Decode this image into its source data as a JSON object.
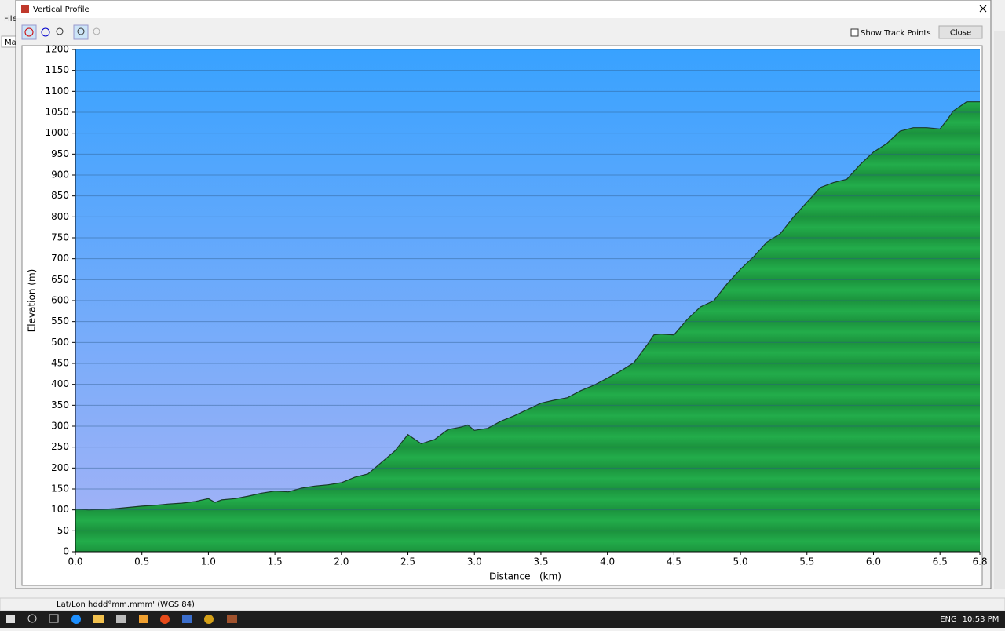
{
  "app": {
    "menu": "File",
    "tab": "Map"
  },
  "window": {
    "title": "Vertical Profile",
    "checkbox": "Show Track Points",
    "close_button": "Close"
  },
  "status_bar": {
    "coords": "Lat/Lon hddd°mm.mmm' (WGS 84)"
  },
  "taskbar": {
    "language": "ENG",
    "clock": "10:53 PM"
  },
  "chart_data": {
    "type": "area",
    "x_label": "Distance   (km)",
    "y_label": "Elevation (m)",
    "x": [
      0.0,
      0.1,
      0.2,
      0.3,
      0.4,
      0.5,
      0.6,
      0.7,
      0.8,
      0.9,
      1.0,
      1.05,
      1.1,
      1.2,
      1.3,
      1.4,
      1.5,
      1.6,
      1.7,
      1.8,
      1.9,
      2.0,
      2.1,
      2.2,
      2.3,
      2.4,
      2.5,
      2.6,
      2.7,
      2.8,
      2.9,
      2.95,
      3.0,
      3.1,
      3.2,
      3.3,
      3.4,
      3.5,
      3.6,
      3.7,
      3.8,
      3.9,
      4.0,
      4.1,
      4.2,
      4.3,
      4.35,
      4.4,
      4.5,
      4.6,
      4.7,
      4.8,
      4.9,
      5.0,
      5.1,
      5.2,
      5.3,
      5.4,
      5.5,
      5.6,
      5.7,
      5.8,
      5.9,
      6.0,
      6.1,
      6.2,
      6.3,
      6.4,
      6.5,
      6.55,
      6.6,
      6.7,
      6.8
    ],
    "values": [
      102,
      100,
      101,
      103,
      106,
      109,
      111,
      114,
      116,
      120,
      127,
      118,
      124,
      127,
      133,
      140,
      145,
      143,
      152,
      157,
      160,
      165,
      178,
      186,
      213,
      240,
      280,
      258,
      268,
      292,
      298,
      303,
      290,
      295,
      312,
      325,
      340,
      355,
      362,
      368,
      385,
      398,
      415,
      432,
      452,
      495,
      518,
      520,
      518,
      555,
      585,
      600,
      640,
      675,
      705,
      740,
      760,
      800,
      835,
      870,
      882,
      890,
      925,
      955,
      975,
      1005,
      1013,
      1013,
      1010,
      1030,
      1053,
      1075,
      1075
    ],
    "color": "#1fa346",
    "line_color": "#1a3a2a",
    "xlim": [
      0,
      6.8
    ],
    "xticks": [
      {
        "value": 0,
        "label": "0.0"
      },
      0.5,
      {
        "value": 1,
        "label": "1.0"
      },
      1.5,
      {
        "value": 2,
        "label": "2.0"
      },
      2.5,
      {
        "value": 3,
        "label": "3.0"
      },
      3.5,
      {
        "value": 4,
        "label": "4.0"
      },
      4.5,
      {
        "value": 5,
        "label": "5.0"
      },
      5.5,
      {
        "value": 6,
        "label": "6.0"
      },
      6.5,
      6.8
    ],
    "ylim": [
      0,
      1200
    ],
    "yticks": [
      0,
      50,
      100,
      150,
      200,
      250,
      300,
      350,
      400,
      450,
      500,
      550,
      600,
      650,
      700,
      750,
      800,
      850,
      900,
      950,
      1000,
      1050,
      1100,
      1150,
      1200
    ],
    "grid": true
  }
}
